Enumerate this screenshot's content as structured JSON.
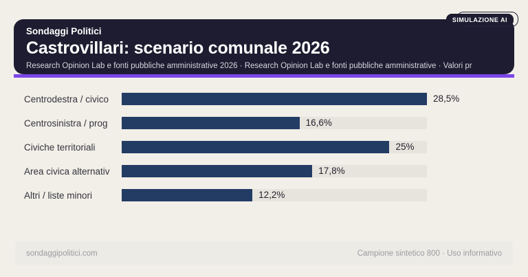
{
  "badge": {
    "label": "SIMULAZIONE AI"
  },
  "header": {
    "kicker": "Sondaggi Politici",
    "title": "Castrovillari: scenario comunale 2026",
    "subtitle": "Research Opinion Lab e fonti pubbliche amministrative 2026 · Research Opinion Lab e fonti pubbliche amministrative · Valori pr"
  },
  "chart_data": {
    "type": "bar",
    "orientation": "horizontal",
    "categories": [
      "Centrodestra / civico",
      "Centrosinistra / prog",
      "Civiche territoriali",
      "Area civica alternativ",
      "Altri / liste minori"
    ],
    "values": [
      28.5,
      16.6,
      25,
      17.8,
      12.2
    ],
    "display_values": [
      "28,5%",
      "16,6%",
      "25%",
      "17,8%",
      "12,2%"
    ],
    "value_unit": "%",
    "xlim": [
      0,
      28.5
    ],
    "grid": false,
    "legend": false,
    "bar_color": "#233c64",
    "track_color": "#e7e4dd"
  },
  "footer": {
    "left": "sondaggipolitici.com",
    "right": "Campione sintetico 800 · Uso informativo"
  },
  "colors": {
    "background": "#f2efe8",
    "card": "#1d1c30",
    "accent": "#7b45e8",
    "bar": "#233c64",
    "track": "#e7e4dd"
  }
}
